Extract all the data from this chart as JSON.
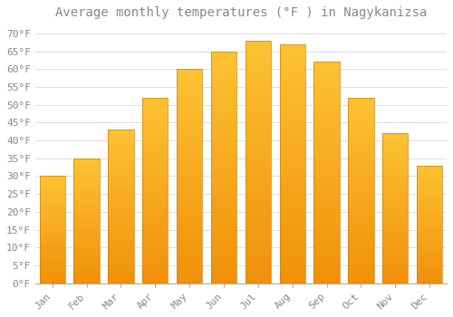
{
  "title": "Average monthly temperatures (°F ) in Nagykanizsa",
  "months": [
    "Jan",
    "Feb",
    "Mar",
    "Apr",
    "May",
    "Jun",
    "Jul",
    "Aug",
    "Sep",
    "Oct",
    "Nov",
    "Dec"
  ],
  "values": [
    30,
    35,
    43,
    52,
    60,
    65,
    68,
    67,
    62,
    52,
    42,
    33
  ],
  "bar_color_top": "#FDC233",
  "bar_color_bottom": "#F0900A",
  "bar_edge_color": "#C8820A",
  "background_color": "#FFFFFF",
  "grid_color": "#DDDDDD",
  "ylim": [
    0,
    72
  ],
  "yticks": [
    0,
    5,
    10,
    15,
    20,
    25,
    30,
    35,
    40,
    45,
    50,
    55,
    60,
    65,
    70
  ],
  "title_fontsize": 10,
  "tick_fontsize": 8,
  "font_color": "#888888",
  "bar_width": 0.75
}
